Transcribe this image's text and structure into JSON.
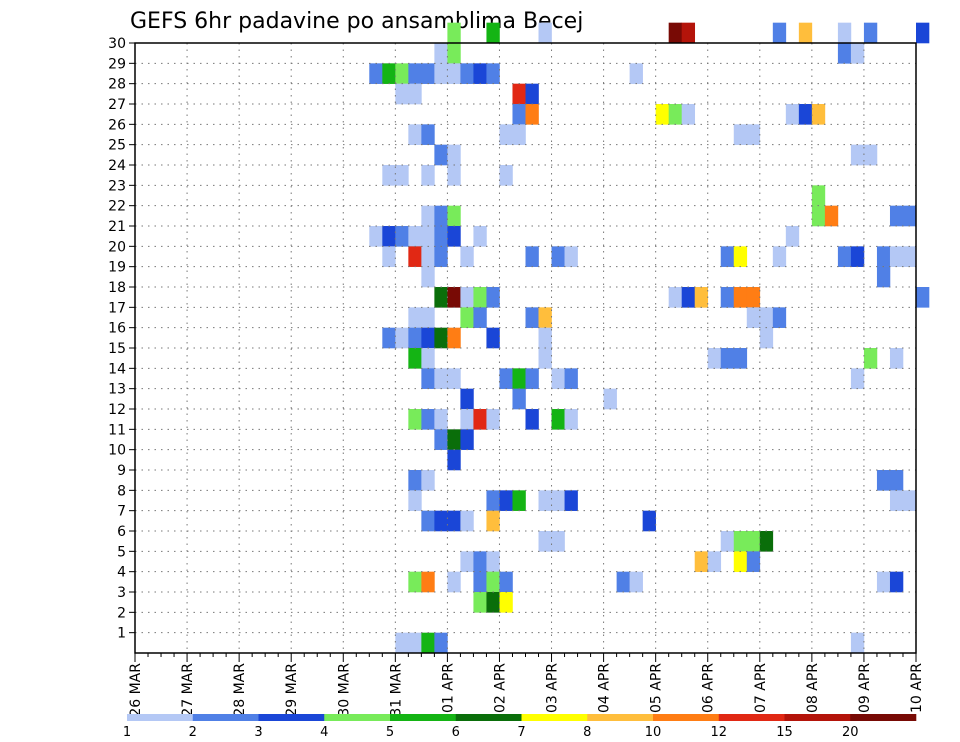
{
  "chart_data": {
    "type": "heatmap",
    "title": "GEFS 6hr padavine po ansamblima Becej",
    "xlabel": "",
    "ylabel": "",
    "x_tick_labels": [
      "26 MAR",
      "27 MAR",
      "28 MAR",
      "29 MAR",
      "30 MAR",
      "31 MAR",
      "01 APR",
      "02 APR",
      "03 APR",
      "04 APR",
      "05 APR",
      "06 APR",
      "07 APR",
      "08 APR",
      "09 APR",
      "10 APR"
    ],
    "xlim_days": [
      0,
      15
    ],
    "time_step_hours": 6,
    "y_tick_labels": [
      1,
      2,
      3,
      4,
      5,
      6,
      7,
      8,
      9,
      10,
      11,
      12,
      13,
      14,
      15,
      16,
      17,
      18,
      19,
      20,
      21,
      22,
      23,
      24,
      25,
      26,
      27,
      28,
      29,
      30
    ],
    "ylim": [
      0,
      30
    ],
    "grid": true,
    "colorbar": {
      "thresholds": [
        1,
        2,
        3,
        4,
        5,
        6,
        7,
        8,
        10,
        12,
        15,
        20
      ],
      "tick_labels": [
        "1",
        "2",
        "3",
        "4",
        "5",
        "6",
        "7",
        "8",
        "10",
        "12",
        "15",
        "20"
      ],
      "colors": [
        "#b4c8f5",
        "#5080e6",
        "#1a46d7",
        "#78eb5a",
        "#14b414",
        "#0a6e0a",
        "#ffff00",
        "#ffbe3c",
        "#ff7d14",
        "#e12814",
        "#b4140a",
        "#780a05"
      ]
    },
    "cells_note": "each cell is [time step index from 26 MAR 00Z in 6-hour steps, ensemble member, color class index 0-11]",
    "cells": [
      [
        24,
        30,
        3
      ],
      [
        27,
        30,
        4
      ],
      [
        31,
        30,
        0
      ],
      [
        41,
        30,
        11
      ],
      [
        42,
        30,
        10
      ],
      [
        49,
        30,
        1
      ],
      [
        51,
        30,
        7
      ],
      [
        54,
        30,
        0
      ],
      [
        56,
        30,
        1
      ],
      [
        60,
        30,
        2
      ],
      [
        23,
        29,
        0
      ],
      [
        24,
        29,
        3
      ],
      [
        54,
        29,
        1
      ],
      [
        55,
        29,
        0
      ],
      [
        18,
        28,
        1
      ],
      [
        19,
        28,
        4
      ],
      [
        20,
        28,
        3
      ],
      [
        21,
        28,
        1
      ],
      [
        22,
        28,
        1
      ],
      [
        23,
        28,
        0
      ],
      [
        24,
        28,
        0
      ],
      [
        25,
        28,
        1
      ],
      [
        26,
        28,
        2
      ],
      [
        27,
        28,
        1
      ],
      [
        38,
        28,
        0
      ],
      [
        20,
        27,
        0
      ],
      [
        21,
        27,
        0
      ],
      [
        29,
        27,
        9
      ],
      [
        30,
        27,
        2
      ],
      [
        29,
        26,
        1
      ],
      [
        30,
        26,
        8
      ],
      [
        40,
        26,
        6
      ],
      [
        41,
        26,
        3
      ],
      [
        42,
        26,
        0
      ],
      [
        50,
        26,
        0
      ],
      [
        51,
        26,
        2
      ],
      [
        52,
        26,
        7
      ],
      [
        21,
        25,
        0
      ],
      [
        22,
        25,
        1
      ],
      [
        28,
        25,
        0
      ],
      [
        29,
        25,
        0
      ],
      [
        46,
        25,
        0
      ],
      [
        47,
        25,
        0
      ],
      [
        23,
        24,
        1
      ],
      [
        24,
        24,
        0
      ],
      [
        55,
        24,
        0
      ],
      [
        56,
        24,
        0
      ],
      [
        19,
        23,
        0
      ],
      [
        20,
        23,
        0
      ],
      [
        22,
        23,
        0
      ],
      [
        24,
        23,
        0
      ],
      [
        28,
        23,
        0
      ],
      [
        52,
        22,
        3
      ],
      [
        22,
        21,
        0
      ],
      [
        23,
        21,
        1
      ],
      [
        24,
        21,
        3
      ],
      [
        52,
        21,
        3
      ],
      [
        53,
        21,
        8
      ],
      [
        58,
        21,
        1
      ],
      [
        59,
        21,
        1
      ],
      [
        18,
        20,
        0
      ],
      [
        19,
        20,
        2
      ],
      [
        20,
        20,
        1
      ],
      [
        21,
        20,
        0
      ],
      [
        22,
        20,
        0
      ],
      [
        23,
        20,
        1
      ],
      [
        24,
        20,
        2
      ],
      [
        26,
        20,
        0
      ],
      [
        50,
        20,
        0
      ],
      [
        19,
        19,
        0
      ],
      [
        21,
        19,
        9
      ],
      [
        22,
        19,
        0
      ],
      [
        23,
        19,
        1
      ],
      [
        25,
        19,
        0
      ],
      [
        30,
        19,
        1
      ],
      [
        32,
        19,
        1
      ],
      [
        33,
        19,
        0
      ],
      [
        45,
        19,
        1
      ],
      [
        46,
        19,
        6
      ],
      [
        49,
        19,
        0
      ],
      [
        54,
        19,
        1
      ],
      [
        55,
        19,
        2
      ],
      [
        57,
        19,
        1
      ],
      [
        58,
        19,
        0
      ],
      [
        59,
        19,
        0
      ],
      [
        22,
        18,
        0
      ],
      [
        57,
        18,
        1
      ],
      [
        23,
        17,
        5
      ],
      [
        24,
        17,
        11
      ],
      [
        25,
        17,
        0
      ],
      [
        26,
        17,
        3
      ],
      [
        27,
        17,
        1
      ],
      [
        41,
        17,
        0
      ],
      [
        42,
        17,
        2
      ],
      [
        43,
        17,
        7
      ],
      [
        45,
        17,
        1
      ],
      [
        46,
        17,
        8
      ],
      [
        47,
        17,
        8
      ],
      [
        60,
        17,
        1
      ],
      [
        21,
        16,
        0
      ],
      [
        22,
        16,
        0
      ],
      [
        25,
        16,
        3
      ],
      [
        26,
        16,
        1
      ],
      [
        30,
        16,
        1
      ],
      [
        31,
        16,
        7
      ],
      [
        47,
        16,
        0
      ],
      [
        48,
        16,
        0
      ],
      [
        49,
        16,
        1
      ],
      [
        19,
        15,
        1
      ],
      [
        20,
        15,
        0
      ],
      [
        21,
        15,
        1
      ],
      [
        22,
        15,
        2
      ],
      [
        23,
        15,
        5
      ],
      [
        24,
        15,
        8
      ],
      [
        27,
        15,
        2
      ],
      [
        31,
        15,
        0
      ],
      [
        48,
        15,
        0
      ],
      [
        21,
        14,
        4
      ],
      [
        22,
        14,
        0
      ],
      [
        31,
        14,
        0
      ],
      [
        44,
        14,
        0
      ],
      [
        45,
        14,
        1
      ],
      [
        46,
        14,
        1
      ],
      [
        56,
        14,
        3
      ],
      [
        58,
        14,
        0
      ],
      [
        22,
        13,
        1
      ],
      [
        23,
        13,
        0
      ],
      [
        24,
        13,
        0
      ],
      [
        28,
        13,
        1
      ],
      [
        29,
        13,
        4
      ],
      [
        30,
        13,
        1
      ],
      [
        32,
        13,
        0
      ],
      [
        33,
        13,
        1
      ],
      [
        55,
        13,
        0
      ],
      [
        25,
        12,
        2
      ],
      [
        29,
        12,
        1
      ],
      [
        36,
        12,
        0
      ],
      [
        21,
        11,
        3
      ],
      [
        22,
        11,
        1
      ],
      [
        23,
        11,
        0
      ],
      [
        25,
        11,
        0
      ],
      [
        26,
        11,
        9
      ],
      [
        27,
        11,
        0
      ],
      [
        30,
        11,
        2
      ],
      [
        32,
        11,
        4
      ],
      [
        33,
        11,
        0
      ],
      [
        23,
        10,
        1
      ],
      [
        24,
        10,
        5
      ],
      [
        25,
        10,
        2
      ],
      [
        24,
        9,
        2
      ],
      [
        21,
        8,
        1
      ],
      [
        22,
        8,
        0
      ],
      [
        57,
        8,
        1
      ],
      [
        58,
        8,
        1
      ],
      [
        21,
        7,
        0
      ],
      [
        27,
        7,
        1
      ],
      [
        28,
        7,
        2
      ],
      [
        29,
        7,
        4
      ],
      [
        31,
        7,
        0
      ],
      [
        32,
        7,
        0
      ],
      [
        33,
        7,
        2
      ],
      [
        58,
        7,
        0
      ],
      [
        59,
        7,
        0
      ],
      [
        22,
        6,
        1
      ],
      [
        23,
        6,
        2
      ],
      [
        24,
        6,
        2
      ],
      [
        25,
        6,
        0
      ],
      [
        27,
        6,
        7
      ],
      [
        39,
        6,
        2
      ],
      [
        31,
        5,
        0
      ],
      [
        32,
        5,
        0
      ],
      [
        45,
        5,
        0
      ],
      [
        46,
        5,
        3
      ],
      [
        47,
        5,
        3
      ],
      [
        48,
        5,
        5
      ],
      [
        25,
        4,
        0
      ],
      [
        26,
        4,
        1
      ],
      [
        27,
        4,
        0
      ],
      [
        43,
        4,
        7
      ],
      [
        44,
        4,
        0
      ],
      [
        46,
        4,
        6
      ],
      [
        47,
        4,
        1
      ],
      [
        21,
        3,
        3
      ],
      [
        22,
        3,
        8
      ],
      [
        24,
        3,
        0
      ],
      [
        26,
        3,
        1
      ],
      [
        27,
        3,
        3
      ],
      [
        28,
        3,
        1
      ],
      [
        37,
        3,
        1
      ],
      [
        38,
        3,
        0
      ],
      [
        57,
        3,
        0
      ],
      [
        58,
        3,
        2
      ],
      [
        26,
        2,
        3
      ],
      [
        27,
        2,
        5
      ],
      [
        28,
        2,
        6
      ],
      [
        20,
        0,
        0
      ],
      [
        21,
        0,
        0
      ],
      [
        22,
        0,
        4
      ],
      [
        23,
        0,
        1
      ],
      [
        55,
        0,
        0
      ]
    ]
  }
}
